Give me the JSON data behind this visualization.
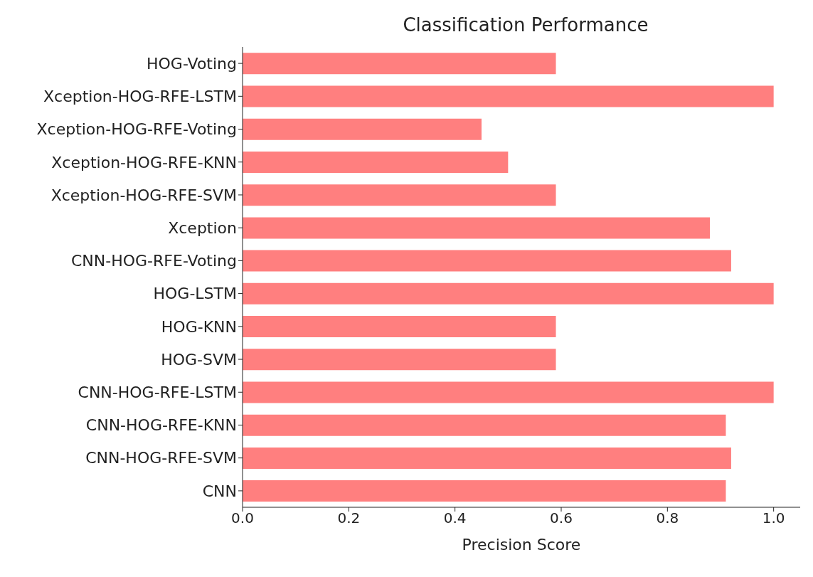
{
  "chart_data": {
    "type": "bar",
    "orientation": "horizontal",
    "title": "Classification Performance",
    "xlabel": "Precision Score",
    "categories": [
      "HOG-Voting",
      "Xception-HOG-RFE-LSTM",
      "Xception-HOG-RFE-Voting",
      "Xception-HOG-RFE-KNN",
      "Xception-HOG-RFE-SVM",
      "Xception",
      "CNN-HOG-RFE-Voting",
      "HOG-LSTM",
      "HOG-KNN",
      "HOG-SVM",
      "CNN-HOG-RFE-LSTM",
      "CNN-HOG-RFE-KNN",
      "CNN-HOG-RFE-SVM",
      "CNN"
    ],
    "values": [
      0.59,
      1.0,
      0.45,
      0.5,
      0.59,
      0.88,
      0.92,
      1.0,
      0.59,
      0.59,
      1.0,
      0.91,
      0.92,
      0.91
    ],
    "color": "#ff7f7f",
    "xlim": [
      0,
      1.05
    ],
    "xticks": [
      {
        "value": 0,
        "label": "0.0"
      },
      {
        "value": 0.2,
        "label": "0.2"
      },
      {
        "value": 0.4,
        "label": "0.4"
      },
      {
        "value": 0.6,
        "label": "0.6"
      },
      {
        "value": 0.8,
        "label": "0.8"
      },
      {
        "value": 1,
        "label": "1.0"
      }
    ],
    "grid": false,
    "legend": false
  }
}
